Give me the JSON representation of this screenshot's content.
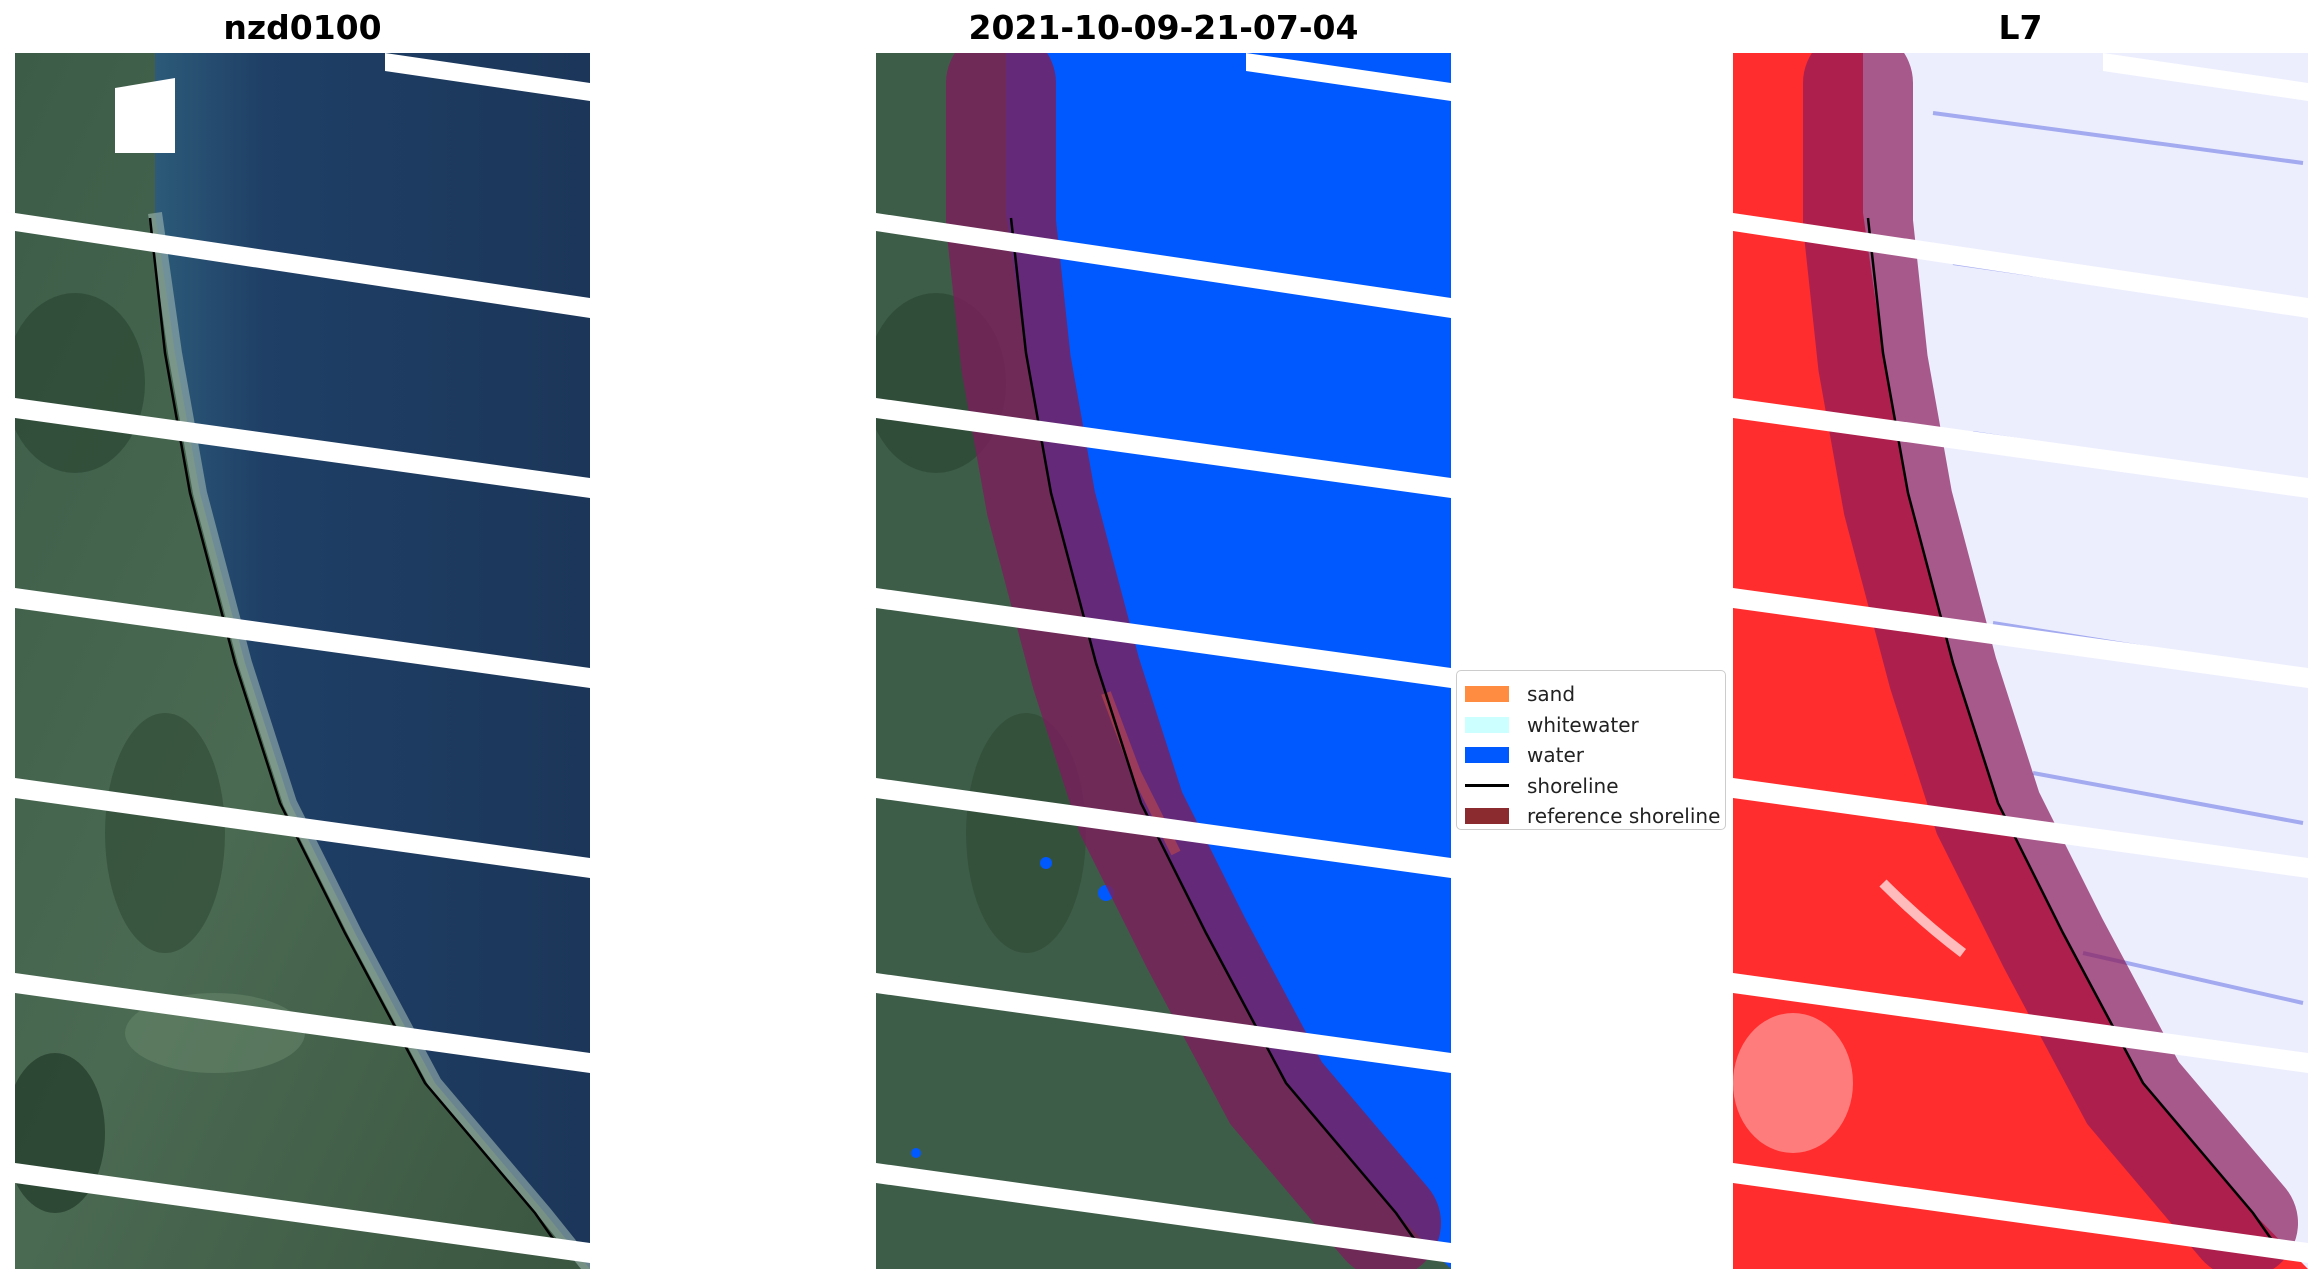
{
  "panels": [
    {
      "title": "nzd0100",
      "kind": "rgb"
    },
    {
      "title": "2021-10-09-21-07-04",
      "kind": "classified"
    },
    {
      "title": "L7",
      "kind": "index"
    }
  ],
  "legend": {
    "items": [
      {
        "label": "sand",
        "color": "#ff8c40",
        "type": "patch"
      },
      {
        "label": "whitewater",
        "color": "#ccffff",
        "type": "patch"
      },
      {
        "label": "water",
        "color": "#0059ff",
        "type": "patch"
      },
      {
        "label": "shoreline",
        "color": "#000000",
        "type": "line"
      },
      {
        "label": "reference shoreline",
        "color": "#8b2a2f",
        "type": "patch"
      }
    ]
  },
  "colors": {
    "land_rgb": "#3a5a44",
    "water_rgb": "#1c3a5e",
    "water_class": "#0059ff",
    "reference_buffer": "#7a1f5c",
    "index_land": "#ff2a2a",
    "index_water": "#e8ecff",
    "scanline_gap": "#ffffff"
  }
}
